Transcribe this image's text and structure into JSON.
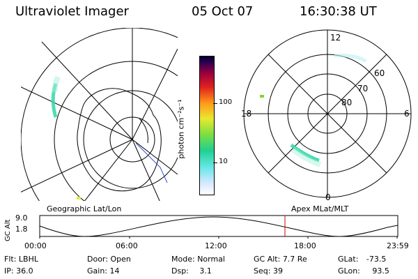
{
  "header": {
    "title": "Ultraviolet Imager",
    "date": "05 Oct 07",
    "time": "16:30:38 UT"
  },
  "colorbar": {
    "label": "photon cm⁻²s⁻¹",
    "ticks": [
      "100",
      "10"
    ]
  },
  "polar_plot": {
    "mlt_labels": [
      "12",
      "18",
      "6",
      "0"
    ],
    "lat_labels": [
      "60",
      "70",
      "80"
    ]
  },
  "panel_labels": {
    "left": "Geographic Lat/Lon",
    "right": "Apex MLat/MLT"
  },
  "altitude_plot": {
    "ylabel": "GC Alt",
    "yticks": [
      "9.0",
      "1.8"
    ],
    "xticks": [
      "00:00",
      "06:00",
      "12:00",
      "18:00",
      "23:59"
    ]
  },
  "info": {
    "filter": {
      "key": "Flt:",
      "value": "LBHL"
    },
    "ip": {
      "key": "IP:",
      "value": "36.0"
    },
    "door": {
      "key": "Door:",
      "value": "Open"
    },
    "gain": {
      "key": "Gain:",
      "value": "14"
    },
    "mode": {
      "key": "Mode:",
      "value": "Normal"
    },
    "dsp": {
      "key": "Dsp:",
      "value": "3.1"
    },
    "gc_alt": {
      "key": "GC Alt:",
      "value": "7.7 Re"
    },
    "seq": {
      "key": "Seq:",
      "value": "39"
    },
    "glat": {
      "key": "GLat:",
      "value": "-73.5"
    },
    "glon": {
      "key": "GLon:",
      "value": "93.5"
    }
  },
  "colors": {
    "accent_line": "#cc0000",
    "aurora": "#33d6a8"
  }
}
